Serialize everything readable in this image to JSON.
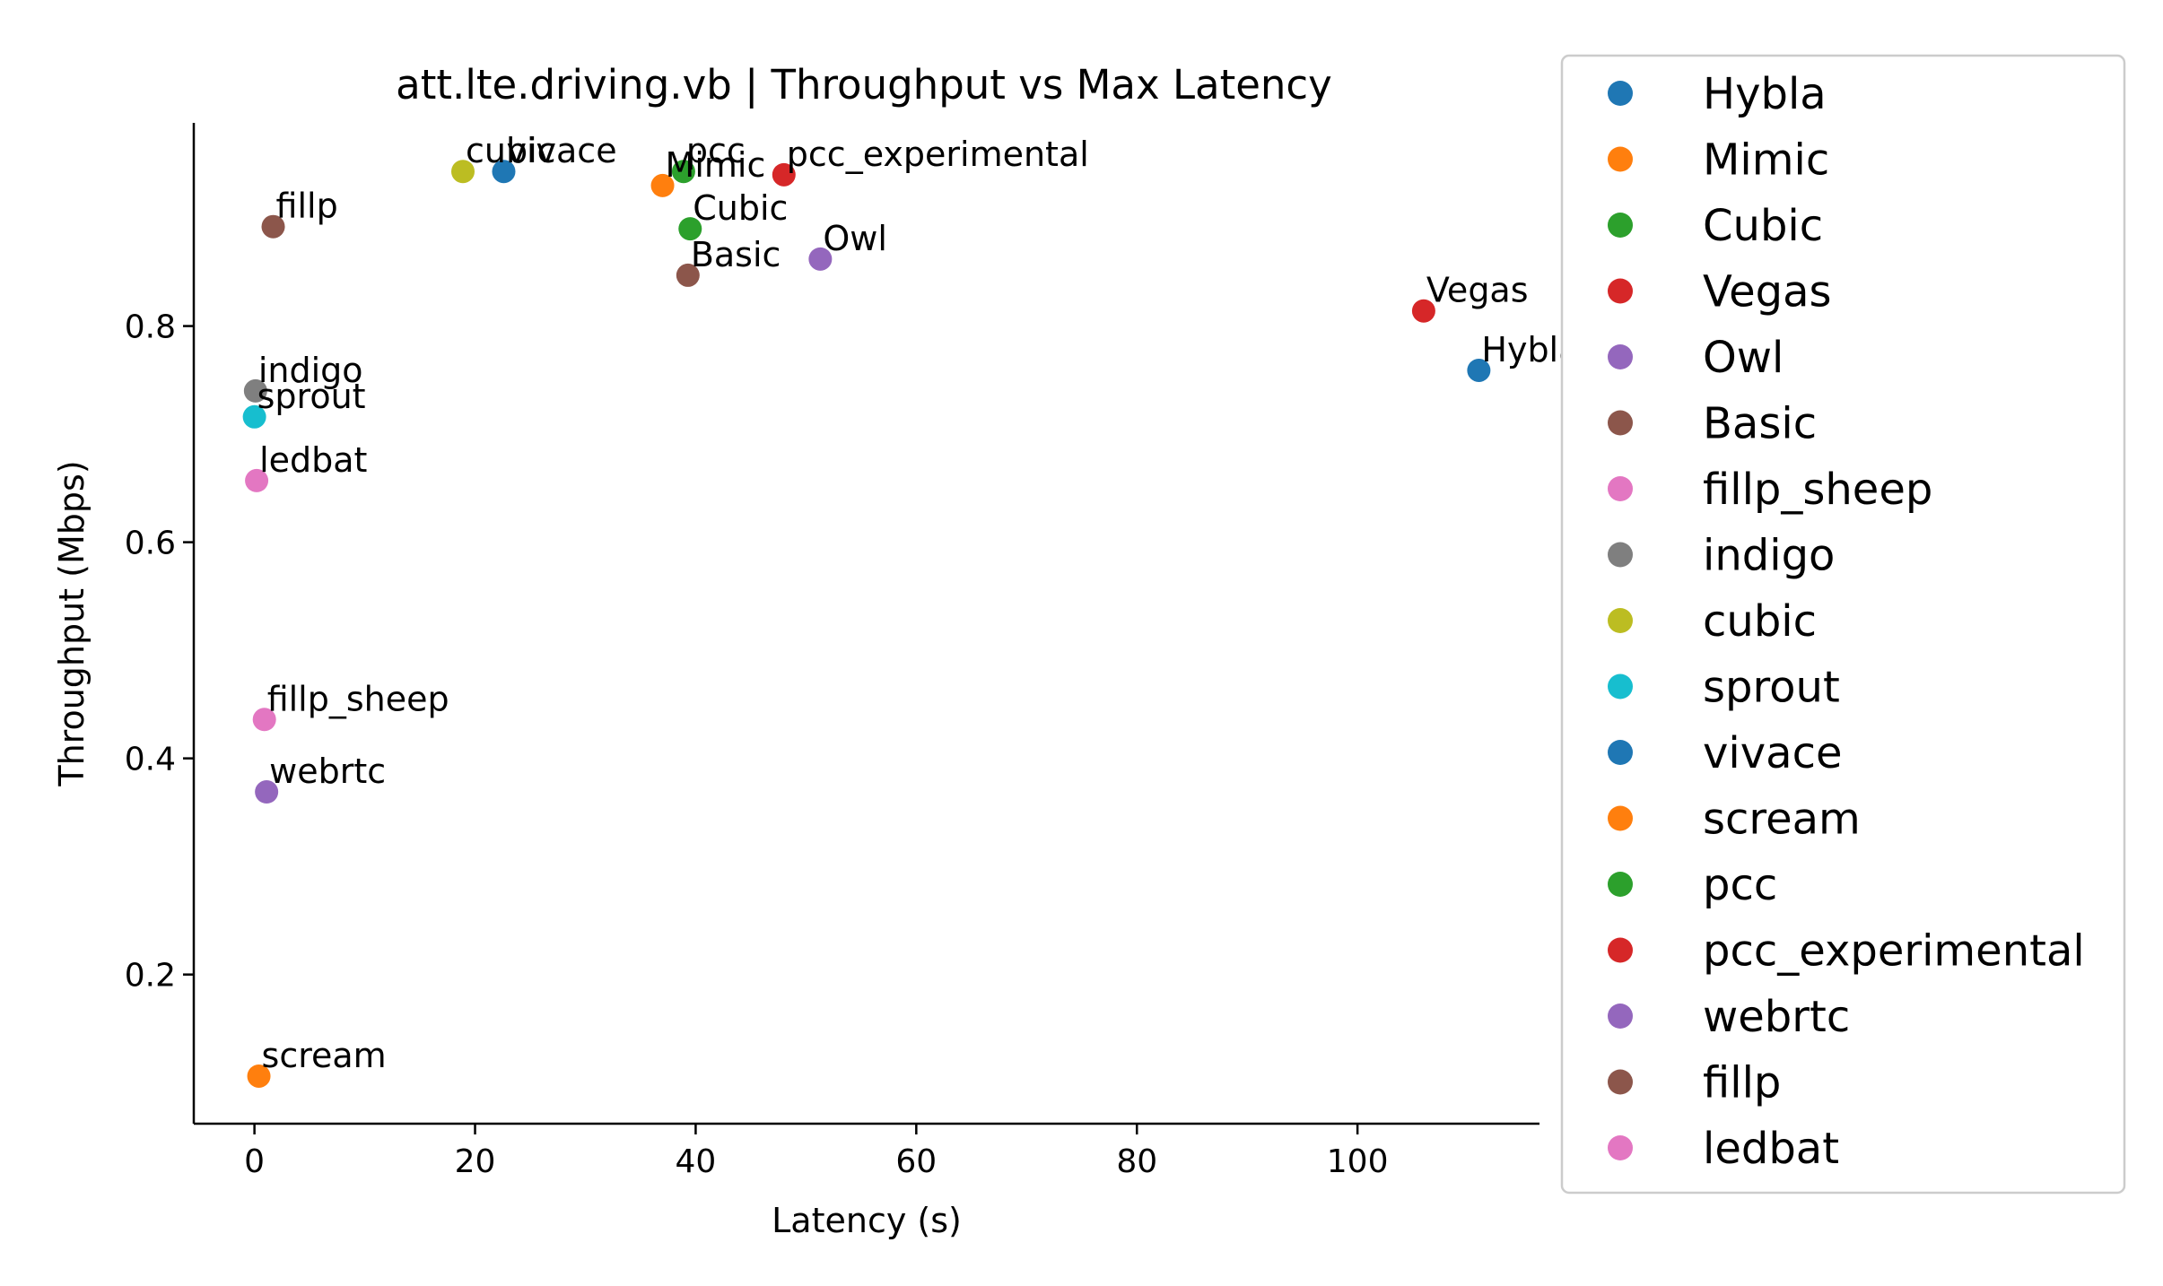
{
  "chart_data": {
    "type": "scatter",
    "title": "att.lte.driving.vb | Throughput vs Max Latency",
    "xlabel": "Latency (s)",
    "ylabel": "Throughput (Mbps)",
    "xlim": [
      -5.5,
      116.5
    ],
    "ylim": [
      0.062,
      0.988
    ],
    "xticks": [
      0,
      20,
      40,
      60,
      80,
      100
    ],
    "yticks": [
      0.2,
      0.4,
      0.6,
      0.8
    ],
    "xtick_labels": [
      "0",
      "20",
      "40",
      "60",
      "80",
      "100"
    ],
    "ytick_labels": [
      "0.2",
      "0.4",
      "0.6",
      "0.8"
    ],
    "grid": false,
    "legend_position": "outside-right",
    "series": [
      {
        "name": "Hybla",
        "color": "#1f77b4",
        "x": 111.0,
        "y": 0.759
      },
      {
        "name": "Mimic",
        "color": "#ff7f0e",
        "x": 37.0,
        "y": 0.93
      },
      {
        "name": "Cubic",
        "color": "#2ca02c",
        "x": 39.5,
        "y": 0.89
      },
      {
        "name": "Vegas",
        "color": "#d62728",
        "x": 106.0,
        "y": 0.814
      },
      {
        "name": "Owl",
        "color": "#9467bd",
        "x": 51.3,
        "y": 0.862
      },
      {
        "name": "Basic",
        "color": "#8c564b",
        "x": 39.3,
        "y": 0.847
      },
      {
        "name": "fillp_sheep",
        "color": "#e377c2",
        "x": 0.9,
        "y": 0.436
      },
      {
        "name": "indigo",
        "color": "#7f7f7f",
        "x": 0.1,
        "y": 0.74
      },
      {
        "name": "cubic",
        "color": "#bcbd22",
        "x": 18.9,
        "y": 0.943
      },
      {
        "name": "sprout",
        "color": "#17becf",
        "x": 0.0,
        "y": 0.716
      },
      {
        "name": "vivace",
        "color": "#1f77b4",
        "x": 22.6,
        "y": 0.943
      },
      {
        "name": "scream",
        "color": "#ff7f0e",
        "x": 0.4,
        "y": 0.106
      },
      {
        "name": "pcc",
        "color": "#2ca02c",
        "x": 38.9,
        "y": 0.943
      },
      {
        "name": "pcc_experimental",
        "color": "#d62728",
        "x": 48.0,
        "y": 0.94
      },
      {
        "name": "webrtc",
        "color": "#9467bd",
        "x": 1.1,
        "y": 0.369
      },
      {
        "name": "fillp",
        "color": "#8c564b",
        "x": 1.7,
        "y": 0.892
      },
      {
        "name": "ledbat",
        "color": "#e377c2",
        "x": 0.2,
        "y": 0.657
      }
    ]
  }
}
